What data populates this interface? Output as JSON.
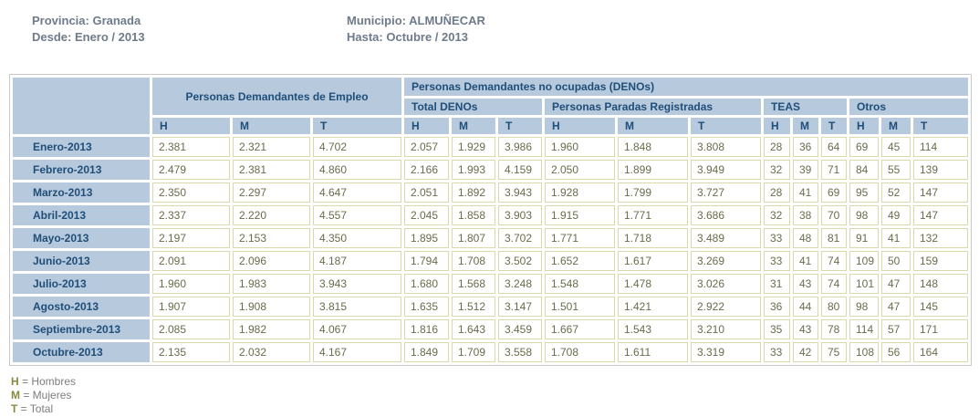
{
  "info": {
    "provincia": "Provincia: Granada",
    "desde": "Desde: Enero / 2013",
    "municipio": "Municipio: ALMUÑECAR",
    "hasta": "Hasta: Octubre / 2013"
  },
  "colors": {
    "header_bg": "#b7c9dc",
    "header_text": "#1f4e79",
    "data_border": "#d9d9ab",
    "data_text": "#6b6b4c",
    "legend_key": "#8a8a3c",
    "info_text": "#6e7b8a"
  },
  "table": {
    "groups": {
      "pde": "Personas Demandantes de Empleo",
      "denos": "Personas Demandantes no ocupadas (DENOs)",
      "total_denos": "Total DENOs",
      "ppr": "Personas Paradas Registradas",
      "teas": "TEAS",
      "otros": "Otros"
    },
    "hmt": [
      "H",
      "M",
      "T"
    ],
    "rows": [
      {
        "label": "Enero-2013",
        "values": [
          "2.381",
          "2.321",
          "4.702",
          "2.057",
          "1.929",
          "3.986",
          "1.960",
          "1.848",
          "3.808",
          "28",
          "36",
          "64",
          "69",
          "45",
          "114"
        ]
      },
      {
        "label": "Febrero-2013",
        "values": [
          "2.479",
          "2.381",
          "4.860",
          "2.166",
          "1.993",
          "4.159",
          "2.050",
          "1.899",
          "3.949",
          "32",
          "39",
          "71",
          "84",
          "55",
          "139"
        ]
      },
      {
        "label": "Marzo-2013",
        "values": [
          "2.350",
          "2.297",
          "4.647",
          "2.051",
          "1.892",
          "3.943",
          "1.928",
          "1.799",
          "3.727",
          "28",
          "41",
          "69",
          "95",
          "52",
          "147"
        ]
      },
      {
        "label": "Abril-2013",
        "values": [
          "2.337",
          "2.220",
          "4.557",
          "2.045",
          "1.858",
          "3.903",
          "1.915",
          "1.771",
          "3.686",
          "32",
          "38",
          "70",
          "98",
          "49",
          "147"
        ]
      },
      {
        "label": "Mayo-2013",
        "values": [
          "2.197",
          "2.153",
          "4.350",
          "1.895",
          "1.807",
          "3.702",
          "1.771",
          "1.718",
          "3.489",
          "33",
          "48",
          "81",
          "91",
          "41",
          "132"
        ]
      },
      {
        "label": "Junio-2013",
        "values": [
          "2.091",
          "2.096",
          "4.187",
          "1.794",
          "1.708",
          "3.502",
          "1.652",
          "1.617",
          "3.269",
          "33",
          "41",
          "74",
          "109",
          "50",
          "159"
        ]
      },
      {
        "label": "Julio-2013",
        "values": [
          "1.960",
          "1.983",
          "3.943",
          "1.680",
          "1.568",
          "3.248",
          "1.548",
          "1.478",
          "3.026",
          "31",
          "43",
          "74",
          "101",
          "47",
          "148"
        ]
      },
      {
        "label": "Agosto-2013",
        "values": [
          "1.907",
          "1.908",
          "3.815",
          "1.635",
          "1.512",
          "3.147",
          "1.501",
          "1.421",
          "2.922",
          "36",
          "44",
          "80",
          "98",
          "47",
          "145"
        ]
      },
      {
        "label": "Septiembre-2013",
        "values": [
          "2.085",
          "1.982",
          "4.067",
          "1.816",
          "1.643",
          "3.459",
          "1.667",
          "1.543",
          "3.210",
          "35",
          "43",
          "78",
          "114",
          "57",
          "171"
        ]
      },
      {
        "label": "Octubre-2013",
        "values": [
          "2.135",
          "2.032",
          "4.167",
          "1.849",
          "1.709",
          "3.558",
          "1.708",
          "1.611",
          "3.319",
          "33",
          "42",
          "75",
          "108",
          "56",
          "164"
        ]
      }
    ]
  },
  "legend": [
    {
      "key": "H",
      "desc": "= Hombres"
    },
    {
      "key": "M",
      "desc": "= Mujeres"
    },
    {
      "key": "T",
      "desc": "= Total"
    }
  ]
}
